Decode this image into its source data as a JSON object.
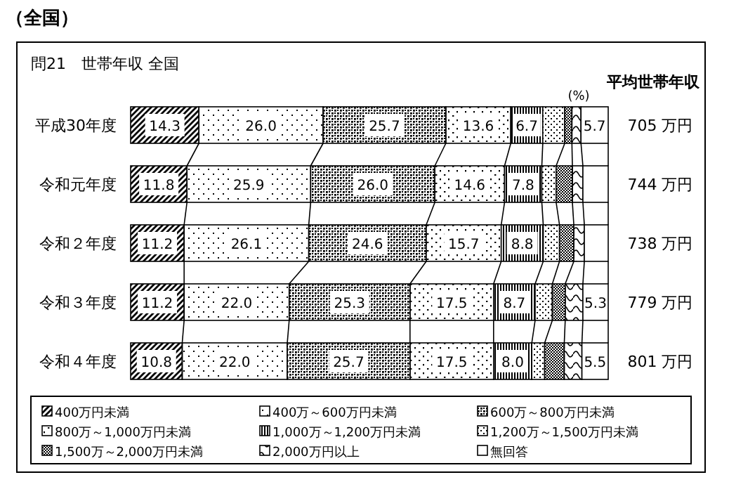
{
  "chart_data": {
    "type": "bar",
    "orientation": "horizontal",
    "stacked": true,
    "title": "問21　世帯年収 全国",
    "subtitle": "（全国）",
    "categories": [
      "平成30年度",
      "令和元年度",
      "令和２年度",
      "令和３年度",
      "令和４年度"
    ],
    "xlim": [
      0,
      100
    ],
    "tick_labels": "y",
    "legend": "bottom",
    "annotations": [
      "(%)",
      "平均世帯年収",
      "705 万円",
      "744 万円",
      "738 万円",
      "779 万円",
      "801 万円"
    ],
    "series": [
      {
        "name": "400万円未満",
        "color": "#000000",
        "values": [
          14.3,
          11.8,
          11.2,
          11.2,
          10.8
        ],
        "value_labels": [
          "14.3",
          "11.8",
          "11.2",
          "11.2",
          "10.8"
        ]
      },
      {
        "name": "400万～600万円未満",
        "color": "#000000",
        "values": [
          26.0,
          25.9,
          26.1,
          22.0,
          22.0
        ],
        "value_labels": [
          "26.0",
          "25.9",
          "26.1",
          "22.0",
          "22.0"
        ]
      },
      {
        "name": "600万～800万円未満",
        "color": "#000000",
        "values": [
          25.7,
          26.0,
          24.6,
          25.3,
          25.7
        ],
        "value_labels": [
          "25.7",
          "26.0",
          "24.6",
          "25.3",
          "25.7"
        ]
      },
      {
        "name": "800万～1,000万円未満",
        "color": "#000000",
        "values": [
          13.6,
          14.6,
          15.7,
          17.5,
          17.5
        ],
        "value_labels": [
          "13.6",
          "14.6",
          "15.7",
          "17.5",
          "17.5"
        ]
      },
      {
        "name": "1,000万～1,200万円未満",
        "color": "#000000",
        "values": [
          6.7,
          7.8,
          8.8,
          8.7,
          8.0
        ],
        "value_labels": [
          "6.7",
          "7.8",
          "8.8",
          "8.7",
          "8.0"
        ]
      },
      {
        "name": "1,200万～1,500万円未満",
        "color": "#000000",
        "values": [
          4.6,
          3.0,
          3.4,
          3.6,
          2.7
        ],
        "value_labels": [
          null,
          null,
          null,
          null,
          null
        ]
      },
      {
        "name": "1,500万～2,000万円未満",
        "color": "#000000",
        "values": [
          1.5,
          3.4,
          3.0,
          2.7,
          4.1
        ],
        "value_labels": [
          null,
          null,
          null,
          null,
          null
        ]
      },
      {
        "name": "2,000万円以上",
        "color": "#000000",
        "values": [
          1.9,
          2.2,
          2.2,
          3.7,
          3.7
        ],
        "value_labels": [
          null,
          null,
          null,
          null,
          null
        ]
      },
      {
        "name": "無回答",
        "color": "#000000",
        "values": [
          5.7,
          5.3,
          5.0,
          5.3,
          5.5
        ],
        "value_labels": [
          "5.7",
          null,
          null,
          "5.3",
          "5.5"
        ]
      }
    ]
  }
}
